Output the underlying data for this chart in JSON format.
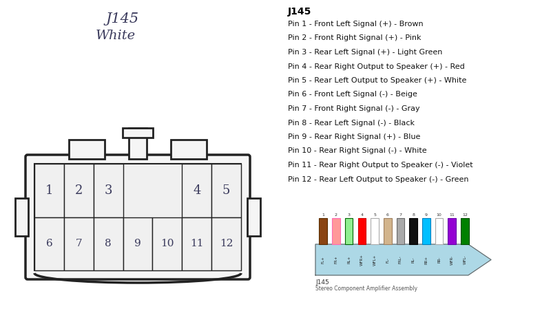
{
  "title": "J145",
  "connector_label": "White",
  "bg_color": "#ffffff",
  "text_color": "#3a3a5c",
  "title_color": "#3a3a5c",
  "right_title": "J145",
  "pin_descriptions": [
    "Pin 1 - Front Left Signal (+) - Brown",
    "Pin 2 - Front Right Signal (+) - Pink",
    "Pin 3 - Rear Left Signal (+) - Light Green",
    "Pin 4 - Rear Right Output to Speaker (+) - Red",
    "Pin 5 - Rear Left Output to Speaker (+) - White",
    "Pin 6 - Front Left Signal (-) - Beige",
    "Pin 7 - Front Right Signal (-) - Gray",
    "Pin 8 - Rear Left Signal (-) - Black",
    "Pin 9 - Rear Right Signal (+) - Blue",
    "Pin 10 - Rear Right Signal (-) - White",
    "Pin 11 - Rear Right Output to Speaker (-) - Violet",
    "Pin 12 - Rear Left Output to Speaker (-) - Green"
  ],
  "wire_colors": [
    "#8B4513",
    "#FF9999",
    "#90EE90",
    "#FF0000",
    "#ffffff",
    "#D2B48C",
    "#A9A9A9",
    "#111111",
    "#00BFFF",
    "#ffffff",
    "#9400D3",
    "#008000"
  ],
  "wire_border_colors": [
    "#5a2d00",
    "#FF69B4",
    "#006400",
    "#CC0000",
    "#aaaaaa",
    "#A08060",
    "#696969",
    "#000000",
    "#007FBF",
    "#aaaaaa",
    "#6600AA",
    "#004d00"
  ],
  "wire_labels": [
    "FL+",
    "FR+",
    "RL+",
    "WFR+",
    "WFL+",
    "FL-",
    "FRL-",
    "RL-",
    "RR+",
    "RR-",
    "WFR-",
    "WFL-"
  ],
  "connector_body_color": "#ADD8E6",
  "bottom_label1": "J145",
  "bottom_label2": "Stereo Component Amplifier Assembly"
}
